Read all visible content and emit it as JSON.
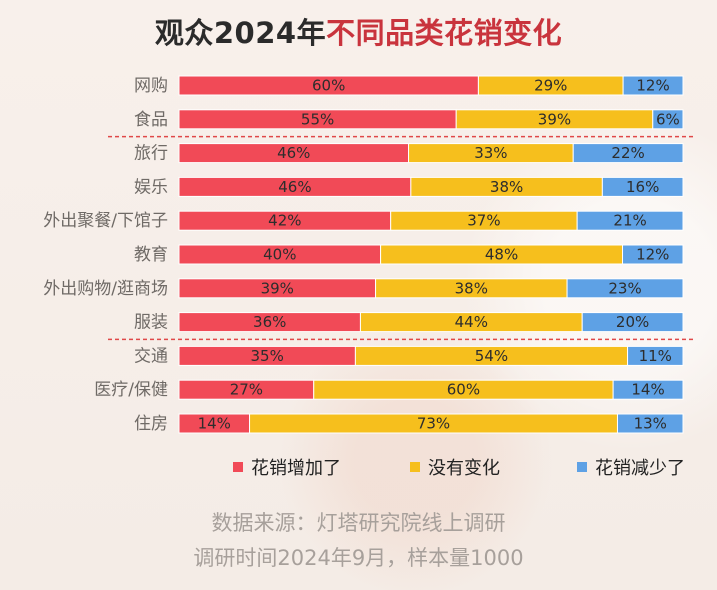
{
  "title": {
    "prefix": "观众2024年",
    "accent": "不同品类花销变化"
  },
  "colors": {
    "background": "#f7efe9",
    "increase": "#f14a57",
    "same": "#f6bf1d",
    "decrease": "#5ea1e5",
    "divider": "#e04848",
    "label": "#6f6a66",
    "source": "#a7a09b",
    "title_accent": "#c9343d"
  },
  "chart_data": {
    "type": "bar",
    "orientation": "horizontal",
    "stacked": true,
    "categories": [
      "网购",
      "食品",
      "旅行",
      "娱乐",
      "外出聚餐/下馆子",
      "教育",
      "外出购物/逛商场",
      "服装",
      "交通",
      "医疗/保健",
      "住房"
    ],
    "series": [
      {
        "name": "花销增加了",
        "values": [
          60,
          55,
          46,
          46,
          42,
          40,
          39,
          36,
          35,
          27,
          14
        ]
      },
      {
        "name": "没有变化",
        "values": [
          29,
          39,
          33,
          38,
          37,
          48,
          38,
          44,
          54,
          60,
          73
        ]
      },
      {
        "name": "花销减少了",
        "values": [
          12,
          6,
          22,
          16,
          21,
          12,
          23,
          20,
          11,
          14,
          13
        ]
      }
    ],
    "xlim": [
      0,
      100
    ],
    "grid": false,
    "legend_position": "bottom",
    "group_separators_after": [
      1,
      7
    ]
  },
  "legend": {
    "items": [
      {
        "label": "花销增加了"
      },
      {
        "label": "没有变化"
      },
      {
        "label": "花销减少了"
      }
    ]
  },
  "source": {
    "line1": "数据来源：灯塔研究院线上调研",
    "line2": "调研时间2024年9月，样本量1000"
  }
}
